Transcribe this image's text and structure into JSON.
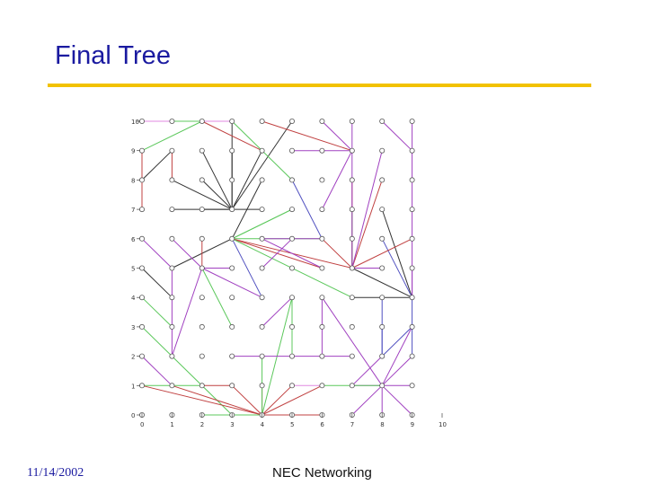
{
  "slide": {
    "title": "Final Tree",
    "date": "11/14/2002",
    "footer": "NEC Networking"
  },
  "colors": {
    "title": "#1a1aa0",
    "rule": "#f2c200",
    "node": "#555555"
  },
  "figure": {
    "x_ticks": [
      "0",
      "1",
      "2",
      "3",
      "4",
      "5",
      "6",
      "7",
      "8",
      "9",
      "10"
    ],
    "y_ticks": [
      "10",
      "9",
      "8",
      "7",
      "6",
      "5",
      "4",
      "3",
      "2",
      "1",
      "0"
    ],
    "grid_size": 10,
    "edges": [
      {
        "from": [
          0,
          10
        ],
        "to": [
          2,
          10
        ],
        "color": "#5cc85c"
      },
      {
        "from": [
          2,
          10
        ],
        "to": [
          0,
          9
        ],
        "color": "#5cc85c"
      },
      {
        "from": [
          3,
          10
        ],
        "to": [
          3,
          7
        ],
        "color": "#333333"
      },
      {
        "from": [
          2,
          9
        ],
        "to": [
          3,
          7
        ],
        "color": "#333333"
      },
      {
        "from": [
          3,
          9
        ],
        "to": [
          3,
          7
        ],
        "color": "#333333"
      },
      {
        "from": [
          4,
          9
        ],
        "to": [
          3,
          7
        ],
        "color": "#333333"
      },
      {
        "from": [
          5,
          10
        ],
        "to": [
          3,
          7
        ],
        "color": "#333333"
      },
      {
        "from": [
          1,
          8
        ],
        "to": [
          3,
          7
        ],
        "color": "#333333"
      },
      {
        "from": [
          2,
          8
        ],
        "to": [
          3,
          7
        ],
        "color": "#333333"
      },
      {
        "from": [
          1,
          7
        ],
        "to": [
          3,
          7
        ],
        "color": "#333333"
      },
      {
        "from": [
          2,
          7
        ],
        "to": [
          3,
          7
        ],
        "color": "#333333"
      },
      {
        "from": [
          0,
          8
        ],
        "to": [
          1,
          9
        ],
        "color": "#333333"
      },
      {
        "from": [
          2,
          10
        ],
        "to": [
          4,
          9
        ],
        "color": "#c04040"
      },
      {
        "from": [
          6,
          10
        ],
        "to": [
          7,
          9
        ],
        "color": "#a040c0"
      },
      {
        "from": [
          7,
          10
        ],
        "to": [
          7,
          9
        ],
        "color": "#a040c0"
      },
      {
        "from": [
          8,
          10
        ],
        "to": [
          9,
          9
        ],
        "color": "#a040c0"
      },
      {
        "from": [
          9,
          10
        ],
        "to": [
          9,
          9
        ],
        "color": "#a040c0"
      },
      {
        "from": [
          4,
          8
        ],
        "to": [
          3,
          6
        ],
        "color": "#333333"
      },
      {
        "from": [
          3,
          6
        ],
        "to": [
          5,
          7
        ],
        "color": "#5cc85c"
      },
      {
        "from": [
          3,
          6
        ],
        "to": [
          6,
          6
        ],
        "color": "#5cc85c"
      },
      {
        "from": [
          3,
          6
        ],
        "to": [
          7,
          5
        ],
        "color": "#c04040"
      },
      {
        "from": [
          3,
          6
        ],
        "to": [
          6,
          5
        ],
        "color": "#c04040"
      },
      {
        "from": [
          3,
          6
        ],
        "to": [
          7,
          4
        ],
        "color": "#5cc85c"
      },
      {
        "from": [
          3,
          6
        ],
        "to": [
          4,
          4
        ],
        "color": "#5050c0"
      },
      {
        "from": [
          1,
          5
        ],
        "to": [
          3,
          6
        ],
        "color": "#333333"
      },
      {
        "from": [
          0,
          6
        ],
        "to": [
          1,
          5
        ],
        "color": "#a040c0"
      },
      {
        "from": [
          1,
          6
        ],
        "to": [
          2,
          5
        ],
        "color": "#a040c0"
      },
      {
        "from": [
          2,
          5
        ],
        "to": [
          3,
          5
        ],
        "color": "#a040c0"
      },
      {
        "from": [
          2,
          5
        ],
        "to": [
          1,
          2
        ],
        "color": "#a040c0"
      },
      {
        "from": [
          2,
          5
        ],
        "to": [
          3,
          3
        ],
        "color": "#5cc85c"
      },
      {
        "from": [
          2,
          6
        ],
        "to": [
          2,
          5
        ],
        "color": "#c04040"
      },
      {
        "from": [
          2,
          5
        ],
        "to": [
          4,
          4
        ],
        "color": "#a040c0"
      },
      {
        "from": [
          1,
          5
        ],
        "to": [
          1,
          4
        ],
        "color": "#a040c0"
      },
      {
        "from": [
          0,
          5
        ],
        "to": [
          1,
          4
        ],
        "color": "#333333"
      },
      {
        "from": [
          0,
          4
        ],
        "to": [
          1,
          3
        ],
        "color": "#5cc85c"
      },
      {
        "from": [
          1,
          4
        ],
        "to": [
          1,
          3
        ],
        "color": "#a040c0"
      },
      {
        "from": [
          0,
          3
        ],
        "to": [
          1,
          2
        ],
        "color": "#5cc85c"
      },
      {
        "from": [
          0,
          2
        ],
        "to": [
          1,
          1
        ],
        "color": "#a040c0"
      },
      {
        "from": [
          1,
          3
        ],
        "to": [
          1,
          2
        ],
        "color": "#a040c0"
      },
      {
        "from": [
          1,
          2
        ],
        "to": [
          3,
          0
        ],
        "color": "#5cc85c"
      },
      {
        "from": [
          0,
          1
        ],
        "to": [
          2,
          1
        ],
        "color": "#5cc85c"
      },
      {
        "from": [
          2,
          1
        ],
        "to": [
          3,
          1
        ],
        "color": "#c04040"
      },
      {
        "from": [
          0,
          1
        ],
        "to": [
          4,
          0
        ],
        "color": "#c04040"
      },
      {
        "from": [
          1,
          1
        ],
        "to": [
          4,
          0
        ],
        "color": "#c04040"
      },
      {
        "from": [
          2,
          0
        ],
        "to": [
          4,
          0
        ],
        "color": "#5cc85c"
      },
      {
        "from": [
          3,
          1
        ],
        "to": [
          4,
          0
        ],
        "color": "#c04040"
      },
      {
        "from": [
          4,
          1
        ],
        "to": [
          4,
          0
        ],
        "color": "#c04040"
      },
      {
        "from": [
          5,
          1
        ],
        "to": [
          4,
          0
        ],
        "color": "#c04040"
      },
      {
        "from": [
          6,
          1
        ],
        "to": [
          4,
          0
        ],
        "color": "#c04040"
      },
      {
        "from": [
          5,
          0
        ],
        "to": [
          4,
          0
        ],
        "color": "#c04040"
      },
      {
        "from": [
          6,
          0
        ],
        "to": [
          4,
          0
        ],
        "color": "#c04040"
      },
      {
        "from": [
          4,
          2
        ],
        "to": [
          4,
          0
        ],
        "color": "#5cc85c"
      },
      {
        "from": [
          5,
          4
        ],
        "to": [
          4,
          0
        ],
        "color": "#5cc85c"
      },
      {
        "from": [
          5,
          3
        ],
        "to": [
          5,
          2
        ],
        "color": "#5cc85c"
      },
      {
        "from": [
          5,
          4
        ],
        "to": [
          5,
          2
        ],
        "color": "#5cc85c"
      },
      {
        "from": [
          3,
          2
        ],
        "to": [
          5,
          2
        ],
        "color": "#a040c0"
      },
      {
        "from": [
          4,
          3
        ],
        "to": [
          5,
          4
        ],
        "color": "#a040c0"
      },
      {
        "from": [
          6,
          4
        ],
        "to": [
          6,
          2
        ],
        "color": "#a040c0"
      },
      {
        "from": [
          6,
          2
        ],
        "to": [
          7,
          2
        ],
        "color": "#a040c0"
      },
      {
        "from": [
          7,
          1
        ],
        "to": [
          8,
          1
        ],
        "color": "#a040c0"
      },
      {
        "from": [
          8,
          1
        ],
        "to": [
          6,
          4
        ],
        "color": "#a040c0"
      },
      {
        "from": [
          8,
          1
        ],
        "to": [
          6,
          1
        ],
        "color": "#5cc85c"
      },
      {
        "from": [
          8,
          1
        ],
        "to": [
          9,
          0
        ],
        "color": "#a040c0"
      },
      {
        "from": [
          8,
          1
        ],
        "to": [
          9,
          1
        ],
        "color": "#a040c0"
      },
      {
        "from": [
          8,
          1
        ],
        "to": [
          8,
          0
        ],
        "color": "#a040c0"
      },
      {
        "from": [
          8,
          1
        ],
        "to": [
          7,
          0
        ],
        "color": "#a040c0"
      },
      {
        "from": [
          8,
          1
        ],
        "to": [
          9,
          3
        ],
        "color": "#a040c0"
      },
      {
        "from": [
          9,
          2
        ],
        "to": [
          8,
          1
        ],
        "color": "#a040c0"
      },
      {
        "from": [
          8,
          2
        ],
        "to": [
          7,
          1
        ],
        "color": "#a040c0"
      },
      {
        "from": [
          9,
          4
        ],
        "to": [
          9,
          2
        ],
        "color": "#5050c0"
      },
      {
        "from": [
          8,
          3
        ],
        "to": [
          8,
          2
        ],
        "color": "#5050c0"
      },
      {
        "from": [
          9,
          3
        ],
        "to": [
          8,
          2
        ],
        "color": "#5050c0"
      },
      {
        "from": [
          8,
          4
        ],
        "to": [
          8,
          2
        ],
        "color": "#5050c0"
      },
      {
        "from": [
          7,
          5
        ],
        "to": [
          9,
          4
        ],
        "color": "#333333"
      },
      {
        "from": [
          8,
          7
        ],
        "to": [
          9,
          4
        ],
        "color": "#333333"
      },
      {
        "from": [
          9,
          5
        ],
        "to": [
          9,
          4
        ],
        "color": "#a040c0"
      },
      {
        "from": [
          9,
          9
        ],
        "to": [
          9,
          4
        ],
        "color": "#a040c0"
      },
      {
        "from": [
          8,
          6
        ],
        "to": [
          9,
          4
        ],
        "color": "#5050c0"
      },
      {
        "from": [
          7,
          4
        ],
        "to": [
          9,
          4
        ],
        "color": "#333333"
      },
      {
        "from": [
          7,
          5
        ],
        "to": [
          8,
          8
        ],
        "color": "#c04040"
      },
      {
        "from": [
          7,
          5
        ],
        "to": [
          7,
          8
        ],
        "color": "#c04040"
      },
      {
        "from": [
          7,
          5
        ],
        "to": [
          6,
          6
        ],
        "color": "#c04040"
      },
      {
        "from": [
          7,
          5
        ],
        "to": [
          7,
          6
        ],
        "color": "#c04040"
      },
      {
        "from": [
          7,
          5
        ],
        "to": [
          7,
          7
        ],
        "color": "#5cc85c"
      },
      {
        "from": [
          7,
          5
        ],
        "to": [
          8,
          5
        ],
        "color": "#a040c0"
      },
      {
        "from": [
          7,
          5
        ],
        "to": [
          9,
          6
        ],
        "color": "#c04040"
      },
      {
        "from": [
          8,
          9
        ],
        "to": [
          7,
          5
        ],
        "color": "#a040c0"
      },
      {
        "from": [
          7,
          9
        ],
        "to": [
          7,
          8
        ],
        "color": "#a040c0"
      },
      {
        "from": [
          7,
          8
        ],
        "to": [
          7,
          5
        ],
        "color": "#a040c0"
      },
      {
        "from": [
          3,
          10
        ],
        "to": [
          5,
          8
        ],
        "color": "#5cc85c"
      },
      {
        "from": [
          4,
          10
        ],
        "to": [
          7,
          9
        ],
        "color": "#c04040"
      },
      {
        "from": [
          5,
          9
        ],
        "to": [
          7,
          9
        ],
        "color": "#a040c0"
      },
      {
        "from": [
          7,
          9
        ],
        "to": [
          6,
          7
        ],
        "color": "#a040c0"
      },
      {
        "from": [
          5,
          8
        ],
        "to": [
          6,
          6
        ],
        "color": "#5050c0"
      },
      {
        "from": [
          5,
          7
        ],
        "to": [
          3,
          6
        ],
        "color": "#5cc85c"
      },
      {
        "from": [
          4,
          6
        ],
        "to": [
          6,
          6
        ],
        "color": "#a040c0"
      },
      {
        "from": [
          4,
          6
        ],
        "to": [
          6,
          5
        ],
        "color": "#a040c0"
      },
      {
        "from": [
          5,
          6
        ],
        "to": [
          4,
          5
        ],
        "color": "#a040c0"
      },
      {
        "from": [
          0,
          9
        ],
        "to": [
          0,
          7
        ],
        "color": "#c04040"
      },
      {
        "from": [
          1,
          9
        ],
        "to": [
          1,
          8
        ],
        "color": "#c04040"
      },
      {
        "from": [
          0,
          10
        ],
        "to": [
          1,
          10
        ],
        "color": "#e08ae0"
      },
      {
        "from": [
          2,
          10
        ],
        "to": [
          3,
          10
        ],
        "color": "#e08ae0"
      },
      {
        "from": [
          3,
          7
        ],
        "to": [
          4,
          7
        ],
        "color": "#333333"
      },
      {
        "from": [
          5,
          2
        ],
        "to": [
          6,
          2
        ],
        "color": "#a040c0"
      },
      {
        "from": [
          5,
          1
        ],
        "to": [
          6,
          1
        ],
        "color": "#e08ae0"
      }
    ]
  }
}
